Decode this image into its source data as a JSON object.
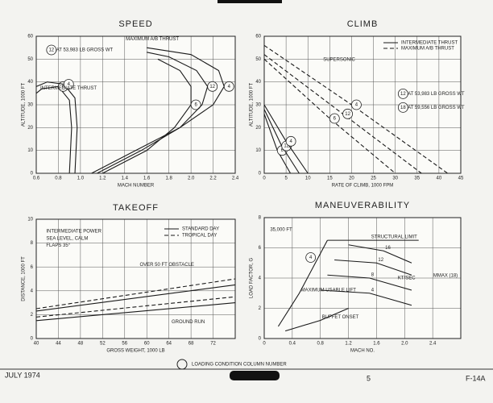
{
  "chart_data": [
    {
      "type": "line",
      "title": "SPEED",
      "x_label": "MACH NUMBER",
      "y_label": "ALTITUDE, 1000 FT",
      "xlim": [
        0.6,
        2.4
      ],
      "xticks": [
        0.6,
        0.8,
        {
          "value": 1,
          "label": "1.0"
        },
        1.2,
        1.4,
        1.6,
        1.8,
        {
          "value": 2,
          "label": "2.0"
        },
        2.2,
        2.4
      ],
      "ylim": [
        0,
        60
      ],
      "yticks": [
        0,
        10,
        20,
        30,
        40,
        50,
        60
      ],
      "grid": true,
      "curve_labels": "circle",
      "annotations": [
        "12",
        "AT 53,983 LB GROSS WT",
        "MAXIMUM A/B THRUST",
        "INTERMEDIATE THRUST"
      ],
      "series": [
        {
          "name": "6",
          "color": "#1a1a1a",
          "dashed": false,
          "x": [
            0.9,
            0.92,
            0.9,
            0.8,
            0.65,
            0.6
          ],
          "values": [
            0,
            20,
            32,
            38,
            37,
            35
          ]
        },
        {
          "name": "4",
          "color": "#1a1a1a",
          "dashed": false,
          "x": [
            0.95,
            0.97,
            0.95,
            0.85,
            0.7,
            0.6
          ],
          "values": [
            0,
            20,
            33,
            39,
            40,
            38
          ]
        },
        {
          "name": "6",
          "color": "#1a1a1a",
          "dashed": false,
          "x": [
            1.2,
            1.6,
            1.85,
            2.0,
            2.0,
            1.9,
            1.7
          ],
          "values": [
            0,
            10,
            20,
            30,
            38,
            45,
            50
          ]
        },
        {
          "name": "12",
          "color": "#1a1a1a",
          "dashed": false,
          "x": [
            1.15,
            1.55,
            1.9,
            2.1,
            2.15,
            2.05,
            1.8,
            1.6
          ],
          "values": [
            0,
            10,
            20,
            30,
            38,
            45,
            51,
            53
          ]
        },
        {
          "name": "4",
          "color": "#1a1a1a",
          "dashed": false,
          "x": [
            1.1,
            1.5,
            1.9,
            2.2,
            2.3,
            2.25,
            2.0,
            1.6
          ],
          "values": [
            0,
            10,
            20,
            30,
            38,
            45,
            52,
            55
          ]
        }
      ]
    },
    {
      "type": "line",
      "title": "CLIMB",
      "x_label": "RATE OF CLIMB, 1000 FPM",
      "y_label": "ALTITUDE, 1000 FT",
      "xlim": [
        0,
        45
      ],
      "xticks": [
        0,
        5,
        10,
        15,
        20,
        25,
        30,
        35,
        40,
        45
      ],
      "ylim": [
        0,
        60
      ],
      "yticks": [
        0,
        10,
        20,
        30,
        40,
        50,
        60
      ],
      "grid": true,
      "curve_labels": "circle",
      "legend": [
        {
          "label": "INTERMEDIATE THRUST",
          "dashed": false
        },
        {
          "label": "MAXIMUM A/B THRUST",
          "dashed": true
        }
      ],
      "annotations": [
        "SUPERSONIC",
        "12",
        "AT 53,983 LB GROSS WT",
        "18",
        "AT 59,556 LB GROSS WT"
      ],
      "series": [
        {
          "name": "6",
          "color": "#1a1a1a",
          "dashed": false,
          "x": [
            0,
            3,
            6
          ],
          "values": [
            26,
            10,
            0
          ]
        },
        {
          "name": "12",
          "color": "#1a1a1a",
          "dashed": false,
          "x": [
            0,
            4,
            8
          ],
          "values": [
            28,
            12,
            0
          ]
        },
        {
          "name": "4",
          "color": "#1a1a1a",
          "dashed": false,
          "x": [
            0,
            5,
            10
          ],
          "values": [
            30,
            14,
            0
          ]
        },
        {
          "name": "6",
          "color": "#1a1a1a",
          "dashed": true,
          "x": [
            0,
            15,
            30
          ],
          "values": [
            50,
            24,
            0
          ]
        },
        {
          "name": "12",
          "color": "#1a1a1a",
          "dashed": true,
          "x": [
            0,
            18,
            36
          ],
          "values": [
            52,
            26,
            0
          ]
        },
        {
          "name": "4",
          "color": "#1a1a1a",
          "dashed": true,
          "x": [
            0,
            20,
            42
          ],
          "values": [
            56,
            30,
            0
          ]
        }
      ]
    },
    {
      "type": "line",
      "title": "TAKEOFF",
      "x_label": "GROSS WEIGHT, 1000 LB",
      "y_label": "DISTANCE, 1000 FT",
      "xlim": [
        40,
        76
      ],
      "xticks": [
        40,
        44,
        48,
        52,
        56,
        60,
        64,
        68,
        72
      ],
      "ylim": [
        0,
        10
      ],
      "yticks": [
        0,
        2,
        4,
        6,
        8,
        10
      ],
      "grid": true,
      "curve_labels": "legend",
      "annotations": [
        "INTERMEDIATE POWER",
        "SEA LEVEL, CALM",
        "FLAPS 35°",
        "OVER 50 FT OBSTACLE",
        "GROUND RUN"
      ],
      "series": [
        {
          "name": "STANDARD DAY",
          "color": "#1a1a1a",
          "dashed": false,
          "x": [
            40,
            76,
            null,
            40,
            76
          ],
          "values": [
            2.3,
            4.5,
            null,
            1.5,
            3.0
          ]
        },
        {
          "name": "TROPICAL DAY",
          "color": "#1a1a1a",
          "dashed": true,
          "x": [
            40,
            76,
            null,
            40,
            76
          ],
          "values": [
            2.5,
            5.0,
            null,
            1.8,
            3.5
          ]
        }
      ]
    },
    {
      "type": "line",
      "title": "MANEUVERABILITY",
      "x_label": "MACH NO.",
      "y_label": "LOAD FACTOR, G",
      "xlim": [
        0,
        2.8
      ],
      "xticks": [
        0,
        0.4,
        0.8,
        1.2,
        1.6,
        {
          "value": 2,
          "label": "2.0"
        },
        2.4
      ],
      "ylim": [
        0,
        8
      ],
      "yticks": [
        0,
        2,
        4,
        6,
        8
      ],
      "grid": true,
      "curve_labels": "text",
      "annotations": [
        "35,000 FT",
        "4",
        "KT/SEC",
        "MMAX (18)"
      ],
      "series": [
        {
          "name": "MAXIMUM USABLE LIFT",
          "color": "#1a1a1a",
          "dashed": false,
          "x": [
            0.2,
            0.5,
            0.9
          ],
          "values": [
            0.8,
            3,
            6.5
          ]
        },
        {
          "name": "STRUCTURAL LIMIT",
          "color": "#1a1a1a",
          "dashed": false,
          "x": [
            0.9,
            1.5,
            2.2
          ],
          "values": [
            6.5,
            6.5,
            6.5
          ]
        },
        {
          "name": "BUFFET ONSET",
          "color": "#1a1a1a",
          "dashed": false,
          "x": [
            0.3,
            0.8,
            1.2
          ],
          "values": [
            0.5,
            1.2,
            2
          ]
        },
        {
          "name": "16",
          "color": "#1a1a1a",
          "dashed": false,
          "x": [
            1.2,
            1.7,
            2.1
          ],
          "values": [
            6.2,
            5.8,
            5.0
          ]
        },
        {
          "name": "12",
          "color": "#1a1a1a",
          "dashed": false,
          "x": [
            1.0,
            1.6,
            2.1
          ],
          "values": [
            5.2,
            5.0,
            4.2
          ]
        },
        {
          "name": "8",
          "color": "#1a1a1a",
          "dashed": false,
          "x": [
            0.9,
            1.5,
            2.1
          ],
          "values": [
            4.2,
            4.0,
            3.2
          ]
        },
        {
          "name": "4",
          "color": "#1a1a1a",
          "dashed": false,
          "x": [
            0.8,
            1.5,
            2.1
          ],
          "values": [
            3.2,
            3.0,
            2.2
          ]
        }
      ]
    }
  ],
  "footer": {
    "date": "JULY 1974",
    "legend": "LOADING CONDITION COLUMN NUMBER",
    "page": "5",
    "aircraft": "F-14A"
  }
}
